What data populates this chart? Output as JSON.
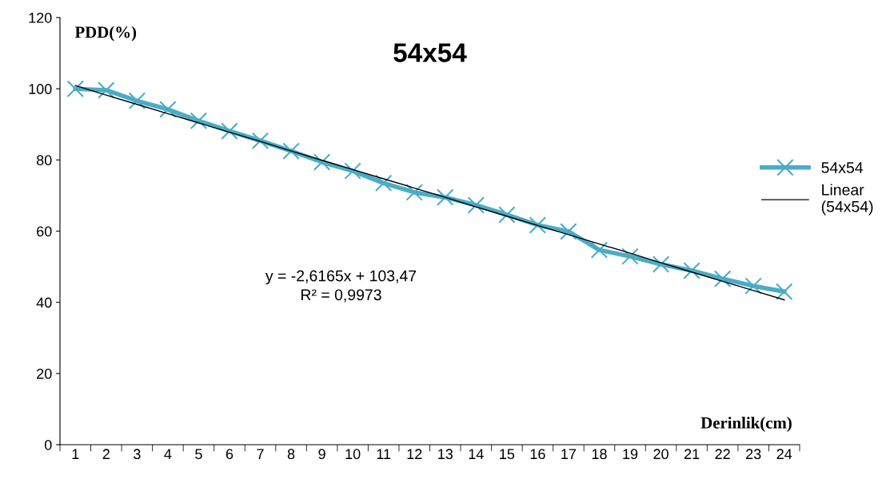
{
  "chart_data": {
    "type": "line",
    "title": "54x54",
    "ylabel": "PDD(%)",
    "xlabel": "Derinlik(cm)",
    "categories": [
      "1",
      "2",
      "3",
      "4",
      "5",
      "6",
      "7",
      "8",
      "9",
      "10",
      "11",
      "12",
      "13",
      "14",
      "15",
      "16",
      "17",
      "18",
      "19",
      "20",
      "21",
      "22",
      "23",
      "24"
    ],
    "series": [
      {
        "name": "54x54",
        "color": "#4bacc6",
        "marker": "cross",
        "values": [
          100,
          99.6,
          96.6,
          94.2,
          91,
          88.1,
          85.4,
          82.5,
          79.4,
          76.9,
          73.5,
          70.9,
          69.5,
          67.3,
          64.6,
          61.7,
          59.9,
          54.7,
          52.9,
          50.7,
          48.9,
          46.6,
          44.6,
          43
        ]
      },
      {
        "name": "Linear\n(54x54)",
        "color": "#000000",
        "values": [
          100.9,
          98.2,
          95.6,
          93.0,
          90.4,
          87.8,
          85.2,
          82.5,
          79.9,
          77.3,
          74.7,
          72.1,
          69.5,
          66.8,
          64.2,
          61.6,
          59.0,
          56.4,
          53.8,
          51.1,
          48.5,
          45.9,
          43.3,
          40.7
        ]
      }
    ],
    "ylim": [
      0,
      120
    ],
    "yticks": [
      0,
      20,
      40,
      60,
      80,
      100,
      120
    ],
    "grid": false,
    "legend": "right",
    "annotations": [
      "y = -2,6165x + 103,47\nR² = 0,9973"
    ]
  }
}
